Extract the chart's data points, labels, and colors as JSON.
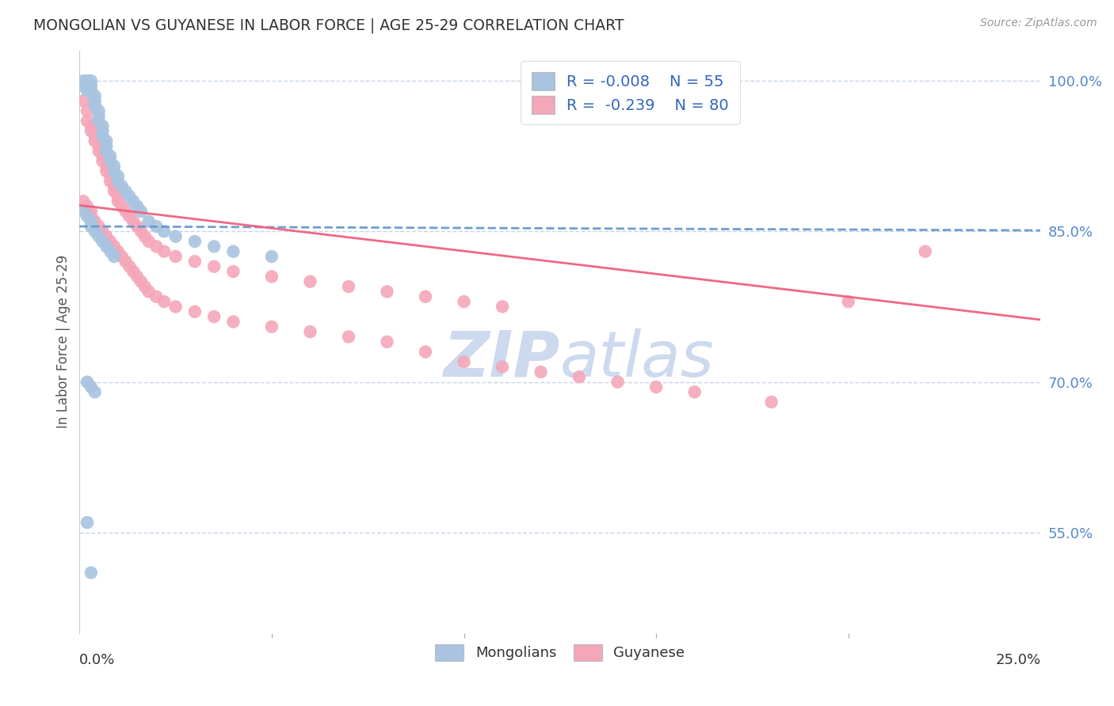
{
  "title": "MONGOLIAN VS GUYANESE IN LABOR FORCE | AGE 25-29 CORRELATION CHART",
  "source": "Source: ZipAtlas.com",
  "ylabel": "In Labor Force | Age 25-29",
  "xmin": 0.0,
  "xmax": 0.25,
  "ymin": 0.45,
  "ymax": 1.03,
  "mongolian_color": "#a8c4e0",
  "guyanese_color": "#f4a7b9",
  "mongolian_line_color": "#6699cc",
  "guyanese_line_color": "#f06080",
  "watermark_color": "#ccd9ee",
  "grid_color": "#c8d4e8",
  "mongolian_x": [
    0.001,
    0.001,
    0.002,
    0.002,
    0.002,
    0.003,
    0.003,
    0.003,
    0.004,
    0.004,
    0.004,
    0.005,
    0.005,
    0.005,
    0.006,
    0.006,
    0.006,
    0.007,
    0.007,
    0.007,
    0.008,
    0.008,
    0.009,
    0.009,
    0.01,
    0.01,
    0.011,
    0.012,
    0.013,
    0.014,
    0.015,
    0.016,
    0.018,
    0.02,
    0.022,
    0.025,
    0.03,
    0.035,
    0.04,
    0.05,
    0.001,
    0.002,
    0.003,
    0.003,
    0.004,
    0.005,
    0.006,
    0.007,
    0.008,
    0.009,
    0.002,
    0.003,
    0.004,
    0.002,
    0.003
  ],
  "mongolian_y": [
    1.0,
    0.995,
    1.0,
    0.995,
    0.99,
    1.0,
    0.995,
    0.99,
    0.985,
    0.98,
    0.975,
    0.97,
    0.965,
    0.96,
    0.955,
    0.95,
    0.945,
    0.94,
    0.935,
    0.93,
    0.925,
    0.92,
    0.915,
    0.91,
    0.905,
    0.9,
    0.895,
    0.89,
    0.885,
    0.88,
    0.875,
    0.87,
    0.86,
    0.855,
    0.85,
    0.845,
    0.84,
    0.835,
    0.83,
    0.825,
    0.87,
    0.865,
    0.86,
    0.855,
    0.85,
    0.845,
    0.84,
    0.835,
    0.83,
    0.825,
    0.7,
    0.695,
    0.69,
    0.56,
    0.51
  ],
  "guyanese_x": [
    0.001,
    0.002,
    0.002,
    0.003,
    0.003,
    0.004,
    0.004,
    0.005,
    0.005,
    0.006,
    0.006,
    0.007,
    0.007,
    0.008,
    0.008,
    0.009,
    0.009,
    0.01,
    0.01,
    0.011,
    0.012,
    0.013,
    0.014,
    0.015,
    0.016,
    0.017,
    0.018,
    0.02,
    0.022,
    0.025,
    0.03,
    0.035,
    0.04,
    0.05,
    0.06,
    0.07,
    0.08,
    0.09,
    0.1,
    0.11,
    0.001,
    0.002,
    0.003,
    0.003,
    0.004,
    0.005,
    0.006,
    0.007,
    0.008,
    0.009,
    0.01,
    0.011,
    0.012,
    0.013,
    0.014,
    0.015,
    0.016,
    0.017,
    0.018,
    0.02,
    0.022,
    0.025,
    0.03,
    0.035,
    0.04,
    0.05,
    0.06,
    0.07,
    0.08,
    0.09,
    0.1,
    0.11,
    0.12,
    0.13,
    0.14,
    0.15,
    0.16,
    0.18,
    0.2,
    0.22
  ],
  "guyanese_y": [
    0.98,
    0.97,
    0.96,
    0.955,
    0.95,
    0.945,
    0.94,
    0.935,
    0.93,
    0.925,
    0.92,
    0.915,
    0.91,
    0.905,
    0.9,
    0.895,
    0.89,
    0.885,
    0.88,
    0.875,
    0.87,
    0.865,
    0.86,
    0.855,
    0.85,
    0.845,
    0.84,
    0.835,
    0.83,
    0.825,
    0.82,
    0.815,
    0.81,
    0.805,
    0.8,
    0.795,
    0.79,
    0.785,
    0.78,
    0.775,
    0.88,
    0.875,
    0.87,
    0.865,
    0.86,
    0.855,
    0.85,
    0.845,
    0.84,
    0.835,
    0.83,
    0.825,
    0.82,
    0.815,
    0.81,
    0.805,
    0.8,
    0.795,
    0.79,
    0.785,
    0.78,
    0.775,
    0.77,
    0.765,
    0.76,
    0.755,
    0.75,
    0.745,
    0.74,
    0.73,
    0.72,
    0.715,
    0.71,
    0.705,
    0.7,
    0.695,
    0.69,
    0.68,
    0.78,
    0.83
  ],
  "mong_line_x": [
    0.0,
    0.25
  ],
  "mong_line_y": [
    0.855,
    0.851
  ],
  "guy_line_x": [
    0.0,
    0.25
  ],
  "guy_line_y": [
    0.876,
    0.762
  ]
}
